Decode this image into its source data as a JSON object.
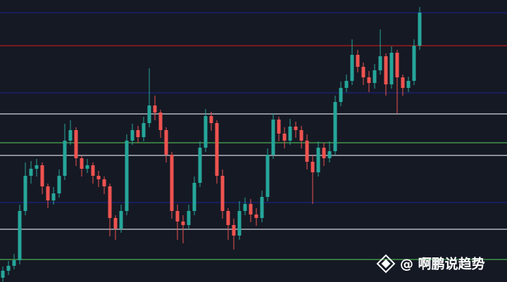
{
  "chart_data": {
    "type": "candlestick",
    "ylim": [
      0,
      401
    ],
    "up_color": "#26a69a",
    "down_color": "#ef5350",
    "open": [
      6,
      16,
      23,
      31,
      101,
      151,
      161,
      166,
      136,
      116,
      126,
      151,
      201,
      216,
      176,
      161,
      166,
      151,
      146,
      136,
      91,
      76,
      101,
      201,
      216,
      206,
      226,
      251,
      241,
      216,
      181,
      101,
      86,
      81,
      101,
      141,
      191,
      236,
      226,
      151,
      101,
      81,
      66,
      101,
      111,
      96,
      91,
      121,
      181,
      231,
      211,
      201,
      221,
      216,
      201,
      171,
      156,
      191,
      176,
      186,
      256,
      276,
      286,
      323,
      306,
      291,
      283,
      301,
      321,
      281,
      326,
      291,
      276,
      286,
      336
    ],
    "high": [
      22,
      30,
      40,
      110,
      170,
      172,
      175,
      170,
      140,
      135,
      160,
      225,
      230,
      220,
      180,
      175,
      170,
      158,
      150,
      140,
      95,
      110,
      210,
      225,
      222,
      235,
      304,
      265,
      245,
      220,
      185,
      110,
      95,
      110,
      150,
      200,
      246,
      242,
      230,
      160,
      105,
      90,
      115,
      120,
      118,
      105,
      130,
      190,
      240,
      235,
      220,
      232,
      228,
      222,
      210,
      180,
      200,
      198,
      200,
      265,
      285,
      295,
      345,
      330,
      312,
      300,
      310,
      359,
      325,
      335,
      330,
      295,
      292,
      345,
      391
    ],
    "low": [
      0,
      10,
      18,
      25,
      95,
      140,
      150,
      125,
      105,
      110,
      120,
      145,
      195,
      165,
      150,
      155,
      140,
      135,
      125,
      65,
      60,
      70,
      95,
      195,
      198,
      200,
      220,
      230,
      205,
      170,
      90,
      60,
      55,
      75,
      95,
      135,
      185,
      215,
      140,
      90,
      60,
      46,
      60,
      95,
      85,
      80,
      85,
      115,
      175,
      200,
      190,
      195,
      205,
      190,
      160,
      111,
      150,
      165,
      170,
      180,
      250,
      270,
      280,
      298,
      280,
      270,
      275,
      295,
      265,
      275,
      240,
      265,
      270,
      280,
      330
    ],
    "close": [
      16,
      23,
      31,
      101,
      151,
      161,
      166,
      136,
      116,
      126,
      151,
      201,
      216,
      176,
      161,
      166,
      151,
      146,
      136,
      91,
      76,
      101,
      201,
      216,
      206,
      226,
      251,
      241,
      216,
      181,
      101,
      86,
      81,
      101,
      141,
      191,
      236,
      226,
      151,
      101,
      81,
      66,
      101,
      111,
      96,
      91,
      121,
      181,
      231,
      211,
      201,
      221,
      216,
      201,
      171,
      156,
      191,
      176,
      186,
      256,
      276,
      286,
      323,
      306,
      291,
      283,
      301,
      321,
      281,
      326,
      291,
      276,
      286,
      336,
      383
    ],
    "levels": [
      {
        "value": 383,
        "color": "#1a237e"
      },
      {
        "value": 336,
        "color": "#b71c1c"
      },
      {
        "value": 269,
        "color": "#1a237e"
      },
      {
        "value": 239,
        "color": "#d1d4dc"
      },
      {
        "value": 198,
        "color": "#4caf50"
      },
      {
        "value": 180,
        "color": "#d1d4dc"
      },
      {
        "value": 113,
        "color": "#1a237e"
      },
      {
        "value": 75,
        "color": "#d1d4dc"
      },
      {
        "value": 32,
        "color": "#4caf50"
      }
    ],
    "watermark": "@ 啊鹏说趋势"
  }
}
